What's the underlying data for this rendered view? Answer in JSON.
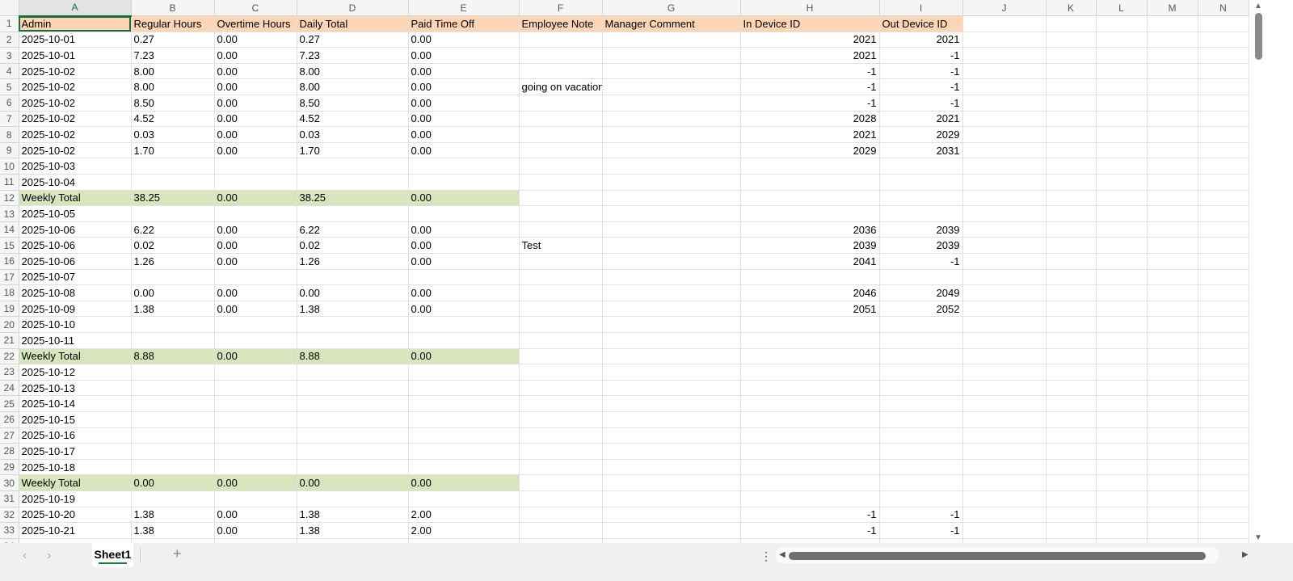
{
  "columns": [
    "A",
    "B",
    "C",
    "D",
    "E",
    "F",
    "G",
    "H",
    "I",
    "J",
    "K",
    "L",
    "M",
    "N"
  ],
  "header_row": [
    "Admin",
    "Regular Hours",
    "Overtime Hours",
    "Daily Total",
    "Paid Time Off",
    "Employee Note",
    "Manager Comment",
    "In Device ID",
    "Out Device ID"
  ],
  "rows": [
    [
      "2025-10-01",
      "0.27",
      "0.00",
      "0.27",
      "0.00",
      "",
      "",
      "2021",
      "2021"
    ],
    [
      "2025-10-01",
      "7.23",
      "0.00",
      "7.23",
      "0.00",
      "",
      "",
      "2021",
      "-1"
    ],
    [
      "2025-10-02",
      "8.00",
      "0.00",
      "8.00",
      "0.00",
      "",
      "",
      "-1",
      "-1"
    ],
    [
      "2025-10-02",
      "8.00",
      "0.00",
      "8.00",
      "0.00",
      "going on vacation",
      "",
      "-1",
      "-1"
    ],
    [
      "2025-10-02",
      "8.50",
      "0.00",
      "8.50",
      "0.00",
      "",
      "",
      "-1",
      "-1"
    ],
    [
      "2025-10-02",
      "4.52",
      "0.00",
      "4.52",
      "0.00",
      "",
      "",
      "2028",
      "2021"
    ],
    [
      "2025-10-02",
      "0.03",
      "0.00",
      "0.03",
      "0.00",
      "",
      "",
      "2021",
      "2029"
    ],
    [
      "2025-10-02",
      "1.70",
      "0.00",
      "1.70",
      "0.00",
      "",
      "",
      "2029",
      "2031"
    ],
    [
      "2025-10-03",
      "",
      "",
      "",
      "",
      "",
      "",
      "",
      ""
    ],
    [
      "2025-10-04",
      "",
      "",
      "",
      "",
      "",
      "",
      "",
      ""
    ],
    [
      "Weekly Total",
      "38.25",
      "0.00",
      "38.25",
      "0.00",
      "",
      "",
      "",
      ""
    ],
    [
      "2025-10-05",
      "",
      "",
      "",
      "",
      "",
      "",
      "",
      ""
    ],
    [
      "2025-10-06",
      "6.22",
      "0.00",
      "6.22",
      "0.00",
      "",
      "",
      "2036",
      "2039"
    ],
    [
      "2025-10-06",
      "0.02",
      "0.00",
      "0.02",
      "0.00",
      "Test",
      "",
      "2039",
      "2039"
    ],
    [
      "2025-10-06",
      "1.26",
      "0.00",
      "1.26",
      "0.00",
      "",
      "",
      "2041",
      "-1"
    ],
    [
      "2025-10-07",
      "",
      "",
      "",
      "",
      "",
      "",
      "",
      ""
    ],
    [
      "2025-10-08",
      "0.00",
      "0.00",
      "0.00",
      "0.00",
      "",
      "",
      "2046",
      "2049"
    ],
    [
      "2025-10-09",
      "1.38",
      "0.00",
      "1.38",
      "0.00",
      "",
      "",
      "2051",
      "2052"
    ],
    [
      "2025-10-10",
      "",
      "",
      "",
      "",
      "",
      "",
      "",
      ""
    ],
    [
      "2025-10-11",
      "",
      "",
      "",
      "",
      "",
      "",
      "",
      ""
    ],
    [
      "Weekly Total",
      "8.88",
      "0.00",
      "8.88",
      "0.00",
      "",
      "",
      "",
      ""
    ],
    [
      "2025-10-12",
      "",
      "",
      "",
      "",
      "",
      "",
      "",
      ""
    ],
    [
      "2025-10-13",
      "",
      "",
      "",
      "",
      "",
      "",
      "",
      ""
    ],
    [
      "2025-10-14",
      "",
      "",
      "",
      "",
      "",
      "",
      "",
      ""
    ],
    [
      "2025-10-15",
      "",
      "",
      "",
      "",
      "",
      "",
      "",
      ""
    ],
    [
      "2025-10-16",
      "",
      "",
      "",
      "",
      "",
      "",
      "",
      ""
    ],
    [
      "2025-10-17",
      "",
      "",
      "",
      "",
      "",
      "",
      "",
      ""
    ],
    [
      "2025-10-18",
      "",
      "",
      "",
      "",
      "",
      "",
      "",
      ""
    ],
    [
      "Weekly Total",
      "0.00",
      "0.00",
      "0.00",
      "0.00",
      "",
      "",
      "",
      ""
    ],
    [
      "2025-10-19",
      "",
      "",
      "",
      "",
      "",
      "",
      "",
      ""
    ],
    [
      "2025-10-20",
      "1.38",
      "0.00",
      "1.38",
      "2.00",
      "",
      "",
      "-1",
      "-1"
    ],
    [
      "2025-10-21",
      "1.38",
      "0.00",
      "1.38",
      "2.00",
      "",
      "",
      "-1",
      "-1"
    ]
  ],
  "colors": {
    "header_fill": "#fcd5b4",
    "weekly_total_fill": "#d8e4bc",
    "accent": "#1b6b3a"
  },
  "sheet_tabs": [
    "Sheet1"
  ],
  "icons": {
    "prev": "chevron-left-icon",
    "next": "chevron-right-icon",
    "add": "plus-icon",
    "more": "more-vertical-icon"
  }
}
